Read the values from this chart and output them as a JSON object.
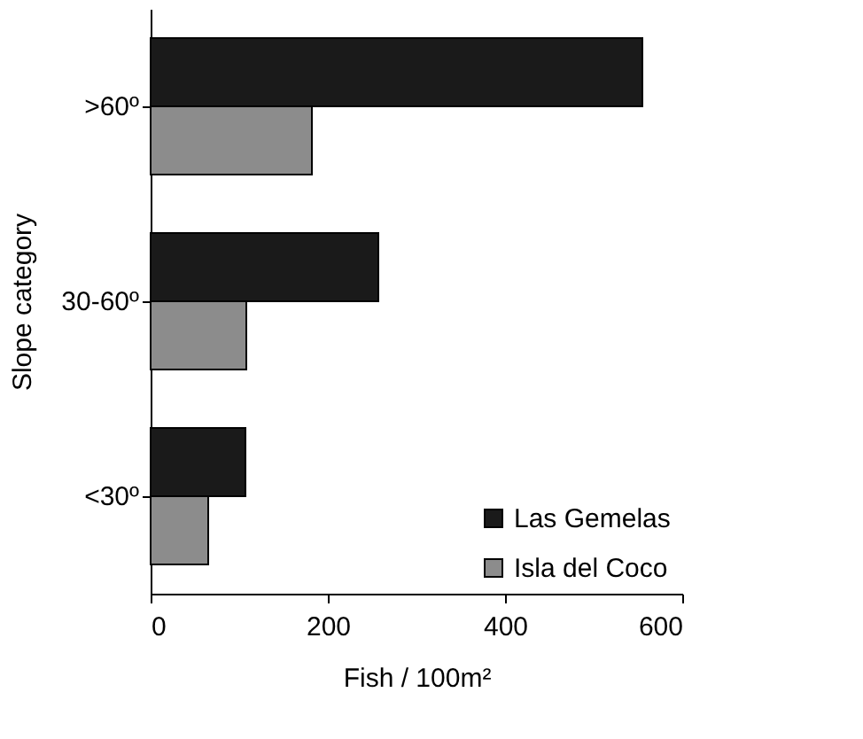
{
  "chart_data": {
    "type": "bar",
    "orientation": "horizontal",
    "xlabel": "Fish / 100m²",
    "ylabel": "Slope category",
    "categories": [
      ">60º",
      "30-60º",
      "<30º"
    ],
    "series": [
      {
        "name": "Las Gemelas",
        "color": "#1a1a1a",
        "values": [
          555,
          257,
          107
        ]
      },
      {
        "name": "Isla del Coco",
        "color": "#8c8c8c",
        "values": [
          182,
          108,
          65
        ]
      }
    ],
    "xlim": [
      0,
      600
    ],
    "xticks": [
      0,
      200,
      400,
      600
    ],
    "grid": false,
    "legend": "bottom right"
  }
}
